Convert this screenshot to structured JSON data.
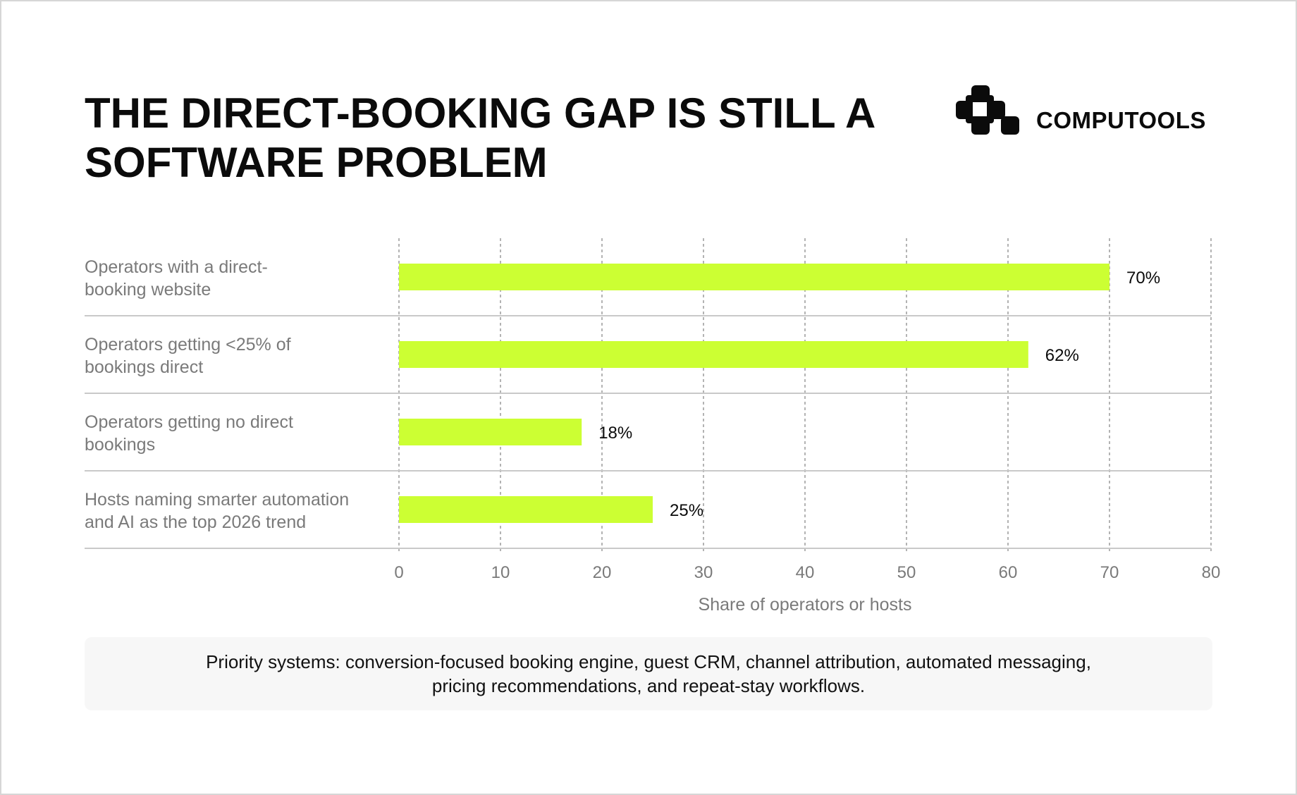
{
  "header": {
    "title": "THE DIRECT-BOOKING GAP IS STILL A SOFTWARE PROBLEM",
    "brand": "COMPUTOOLS"
  },
  "colors": {
    "bar": "#ccff33",
    "text": "#0b0b0b",
    "muted": "#7a7a7a",
    "grid": "#9a9a9a",
    "divider": "#c9c9c9"
  },
  "chart_data": {
    "type": "bar",
    "orientation": "horizontal",
    "categories": [
      "Operators with a direct-booking website",
      "Operators getting <25% of bookings direct",
      "Operators getting no direct bookings",
      "Hosts naming smarter automation and AI as the top 2026 trend"
    ],
    "category_lines": [
      [
        "Operators with a direct-",
        "booking website"
      ],
      [
        "Operators getting <25% of",
        "bookings direct"
      ],
      [
        "Operators getting no direct",
        "bookings"
      ],
      [
        "Hosts naming smarter automation",
        "and AI as the top 2026 trend"
      ]
    ],
    "values": [
      70,
      62,
      18,
      25
    ],
    "value_labels": [
      "70%",
      "62%",
      "18%",
      "25%"
    ],
    "xlabel": "Share of operators or hosts",
    "xlim": [
      0,
      80
    ],
    "xticks": [
      "0",
      "10",
      "20",
      "30",
      "40",
      "50",
      "60",
      "70",
      "80"
    ],
    "grid": "vertical dashed"
  },
  "footer": {
    "note": "Priority systems: conversion-focused booking engine, guest CRM, channel attribution, automated messaging, pricing recommendations, and repeat-stay workflows."
  }
}
